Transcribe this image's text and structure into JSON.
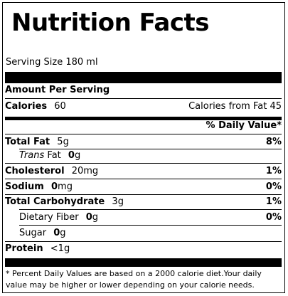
{
  "title": "Nutrition Facts",
  "serving_size": "Serving Size 180 ml",
  "amount_per_serving": "Amount Per Serving",
  "calories": {
    "label": "Calories",
    "value": "60",
    "from_fat": "Calories from Fat 45"
  },
  "daily_value_header": "% Daily Value*",
  "nutrients": {
    "total_fat": {
      "label": "Total Fat",
      "amount": "5",
      "unit": "g",
      "dv": "8%"
    },
    "trans_fat": {
      "label": "Trans",
      "label_rest": "Fat",
      "amount": "0",
      "unit": "g"
    },
    "cholesterol": {
      "label": "Cholesterol",
      "amount": "20",
      "unit": "mg",
      "dv": "1%"
    },
    "sodium": {
      "label": "Sodium",
      "amount": "0",
      "unit": "mg",
      "dv": "0%"
    },
    "total_carbohydrate": {
      "label": "Total Carbohydrate",
      "amount": "3",
      "unit": "g",
      "dv": "1%"
    },
    "dietary_fiber": {
      "label": "Dietary Fiber",
      "amount": "0",
      "unit": "g",
      "dv": "0%"
    },
    "sugar": {
      "label": "Sugar",
      "amount": "0",
      "unit": "g"
    },
    "protein": {
      "label": "Protein",
      "amount": "<1",
      "unit": "g"
    }
  },
  "footnote": "* Percent Daily Values are based on a 2000 calorie diet.Your daily value may be higher or lower depending on your calorie needs."
}
